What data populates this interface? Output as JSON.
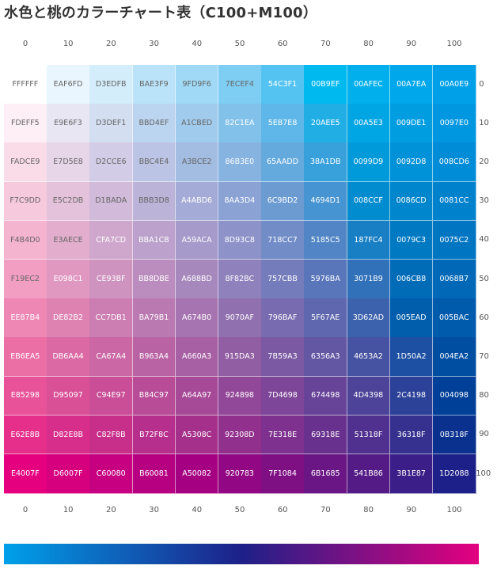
{
  "title": "水色と桃のカラーチャート表（C100+M100）",
  "chart_data": {
    "type": "table",
    "title": "水色と桃のカラーチャート表（C100+M100）",
    "x_axis": {
      "ticks": [
        "0",
        "10",
        "20",
        "30",
        "40",
        "50",
        "60",
        "70",
        "80",
        "90",
        "100"
      ]
    },
    "y_axis": {
      "ticks": [
        "0",
        "10",
        "20",
        "30",
        "40",
        "50",
        "60",
        "70",
        "80",
        "90",
        "100"
      ]
    },
    "cells": [
      [
        "FFFFFF",
        "EAF6FD",
        "D3EDFB",
        "BAE3F9",
        "9FD9F6",
        "7ECEF4",
        "54C3F1",
        "00B9EF",
        "00AFEC",
        "00A7EA",
        "00A0E9"
      ],
      [
        "FDEFF5",
        "E9E6F3",
        "D3DEF1",
        "BBD4EF",
        "A1CBED",
        "82C1EA",
        "5EB7E8",
        "20AEE5",
        "00A5E3",
        "009DE1",
        "0097E0"
      ],
      [
        "FADCE9",
        "E7D5E8",
        "D2CCE6",
        "BBC4E4",
        "A3BCE2",
        "86B3E0",
        "65AADD",
        "38A1DB",
        "0099D9",
        "0092D8",
        "008CD6"
      ],
      [
        "F7C9DD",
        "E5C2DB",
        "D1BADA",
        "BBB3D8",
        "A4ABD6",
        "8AA3D4",
        "6C9BD2",
        "4694D1",
        "008CCF",
        "0086CD",
        "0081CC"
      ],
      [
        "F4B4D0",
        "E3AECE",
        "CFA7CD",
        "BBA1CB",
        "A59ACA",
        "8D93C8",
        "718CC7",
        "5185C5",
        "187FC4",
        "0079C3",
        "0075C2"
      ],
      [
        "F19EC2",
        "E098C1",
        "CE93BF",
        "BB8DBE",
        "A688BD",
        "8F82BC",
        "757CBB",
        "5976BA",
        "3071B9",
        "006CB8",
        "0068B7"
      ],
      [
        "EE87B4",
        "DE82B2",
        "CC7DB1",
        "BA79B1",
        "A674B0",
        "9070AF",
        "796BAF",
        "5F67AE",
        "3D62AD",
        "005EAD",
        "005BAC"
      ],
      [
        "EB6EA5",
        "DB6AA4",
        "CA67A4",
        "B963A4",
        "A660A3",
        "915DA3",
        "7B59A3",
        "6356A3",
        "4653A2",
        "1D50A2",
        "004EA2"
      ],
      [
        "E85298",
        "D95097",
        "C94E97",
        "B84C97",
        "A64A97",
        "924898",
        "7D4698",
        "674498",
        "4D4398",
        "2C4198",
        "004098"
      ],
      [
        "E62E8B",
        "D82E8B",
        "C82F8B",
        "B72F8C",
        "A5308C",
        "92308D",
        "7E318E",
        "69318E",
        "51318F",
        "36318F",
        "0B318F"
      ],
      [
        "E4007F",
        "D6007F",
        "C60080",
        "B60081",
        "A50082",
        "920783",
        "7F1084",
        "6B1685",
        "541B86",
        "3B1E87",
        "1D2088"
      ]
    ],
    "gradient_colors": [
      "#00A0E9",
      "#1D2088",
      "#E4007F"
    ]
  }
}
